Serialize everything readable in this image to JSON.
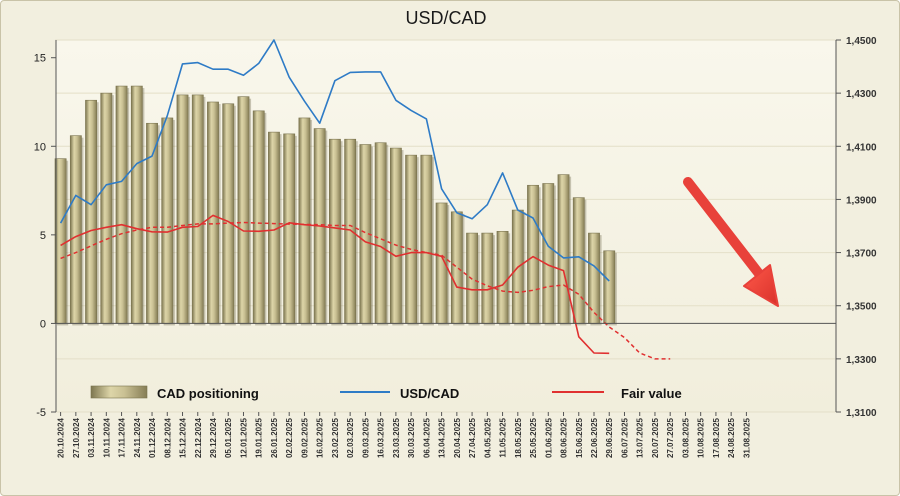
{
  "chart_data": {
    "type": "bar",
    "title": "USD/CAD",
    "grid": true,
    "legend_position": "bottom",
    "x_tick_labels": [
      "20.10.2024",
      "27.10.2024",
      "03.11.2024",
      "10.11.2024",
      "17.11.2024",
      "24.11.2024",
      "01.12.2024",
      "08.12.2024",
      "15.12.2024",
      "22.12.2024",
      "29.12.2024",
      "05.01.2025",
      "12.01.2025",
      "19.01.2025",
      "26.01.2025",
      "02.02.2025",
      "09.02.2025",
      "16.02.2025",
      "23.02.2025",
      "02.03.2025",
      "09.03.2025",
      "16.03.2025",
      "23.03.2025",
      "30.03.2025",
      "06.04.2025",
      "13.04.2025",
      "20.04.2025",
      "27.04.2025",
      "04.05.2025",
      "11.05.2025",
      "18.05.2025",
      "25.05.2025",
      "01.06.2025",
      "08.06.2025",
      "15.06.2025",
      "22.06.2025",
      "29.06.2025",
      "06.07.2025",
      "13.07.2025",
      "20.07.2025",
      "27.07.2025",
      "03.08.2025",
      "10.08.2025",
      "17.08.2025",
      "24.08.2025",
      "31.08.2025"
    ],
    "left_axis": {
      "ylim": [
        -5,
        16
      ],
      "ticks": [
        "15",
        "10",
        "5",
        "0",
        "-5"
      ],
      "tick_values": [
        15,
        10,
        5,
        0,
        -5
      ]
    },
    "right_axis": {
      "ylim": [
        1.31,
        1.45
      ],
      "ticks": [
        "1,4500",
        "1,4300",
        "1,4100",
        "1,3900",
        "1,3700",
        "1,3500",
        "1,3300",
        "1,3100"
      ],
      "tick_values": [
        1.45,
        1.43,
        1.41,
        1.39,
        1.37,
        1.35,
        1.33,
        1.31
      ]
    },
    "series": [
      {
        "name": "CAD positioning",
        "kind": "bar",
        "axis": "left",
        "color": "#a39a6a",
        "values": [
          9.3,
          10.6,
          12.6,
          13.0,
          13.4,
          13.4,
          11.3,
          11.6,
          12.9,
          12.9,
          12.5,
          12.4,
          12.8,
          12.0,
          10.8,
          10.7,
          11.6,
          11.0,
          10.4,
          10.4,
          10.1,
          10.2,
          9.9,
          9.5,
          9.5,
          6.8,
          6.3,
          5.1,
          5.1,
          5.2,
          6.4,
          7.8,
          7.9,
          8.4,
          7.1,
          5.1,
          4.1
        ]
      },
      {
        "name": "USD/CAD",
        "kind": "line",
        "axis": "right",
        "color": "#2e7bc6",
        "values": [
          1.3811,
          1.3915,
          1.388,
          1.3955,
          1.3968,
          1.4035,
          1.4063,
          1.4215,
          1.441,
          1.4415,
          1.439,
          1.439,
          1.4367,
          1.4412,
          1.45,
          1.436,
          1.427,
          1.4187,
          1.4347,
          1.4378,
          1.438,
          1.438,
          1.4273,
          1.4235,
          1.4203,
          1.394,
          1.385,
          1.3827,
          1.388,
          1.4,
          1.386,
          1.383,
          1.3724,
          1.368,
          1.3684,
          1.365,
          1.3593
        ]
      },
      {
        "name": "Fair value",
        "kind": "line",
        "axis": "right",
        "color": "#e03030",
        "values": [
          1.3727,
          1.376,
          1.3783,
          1.3795,
          1.3805,
          1.379,
          1.3778,
          1.3777,
          1.3795,
          1.3798,
          1.384,
          1.3817,
          1.3781,
          1.378,
          1.3785,
          1.3812,
          1.3805,
          1.38,
          1.3793,
          1.3785,
          1.374,
          1.3723,
          1.3686,
          1.37,
          1.37,
          1.3686,
          1.357,
          1.356,
          1.356,
          1.3578,
          1.3645,
          1.3685,
          1.3653,
          1.3632,
          1.3383,
          1.3322,
          1.3321
        ]
      },
      {
        "name": "",
        "kind": "line-dashed",
        "axis": "right",
        "color": "#e03030",
        "values": [
          1.3678,
          1.37,
          1.3725,
          1.375,
          1.3771,
          1.3785,
          1.3795,
          1.3795,
          1.3802,
          1.3808,
          1.3808,
          1.3811,
          1.3813,
          1.3811,
          1.3809,
          1.3807,
          1.3806,
          1.3805,
          1.3802,
          1.3802,
          1.3775,
          1.3752,
          1.3728,
          1.3712,
          1.37,
          1.369,
          1.3645,
          1.36,
          1.3575,
          1.3555,
          1.355,
          1.3558,
          1.3572,
          1.3578,
          1.3543,
          1.3475,
          1.342,
          1.338,
          1.3322,
          1.33,
          1.33
        ]
      }
    ],
    "annotations": [
      {
        "type": "arrow",
        "direction": "down-right",
        "color": "#e8413a"
      }
    ]
  }
}
